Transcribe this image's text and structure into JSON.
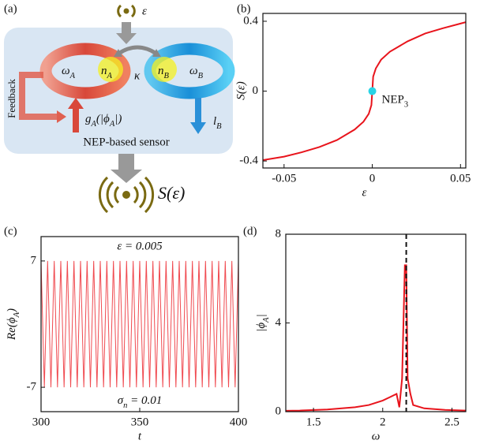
{
  "diagram": {
    "label": "(a)",
    "input": "ε",
    "omega_a": [
      "ω",
      "A"
    ],
    "n_a": [
      "n",
      "A"
    ],
    "kappa": "κ",
    "n_b": [
      "n",
      "B"
    ],
    "omega_b": [
      "ω",
      "B"
    ],
    "feedback": "Feedback",
    "gain": [
      "g",
      "A",
      "(|ϕ",
      "A",
      "|)"
    ],
    "loss": [
      "l",
      "B"
    ],
    "caption": "NEP-based sensor",
    "output": "S(ε)"
  },
  "chart_data": [
    {
      "type": "line",
      "label": "(b)",
      "color": "#e8141c",
      "x": [
        -0.062,
        -0.05,
        -0.04,
        -0.03,
        -0.02,
        -0.01,
        -0.005,
        -0.002,
        -0.0005,
        0,
        0.0005,
        0.002,
        0.005,
        0.01,
        0.02,
        0.03,
        0.04,
        0.05,
        0.053
      ],
      "values": [
        -0.395,
        -0.375,
        -0.35,
        -0.32,
        -0.28,
        -0.22,
        -0.175,
        -0.13,
        -0.08,
        0,
        0.083,
        0.13,
        0.18,
        0.226,
        0.285,
        0.33,
        0.36,
        0.387,
        0.395
      ],
      "xlim": [
        -0.062,
        0.053
      ],
      "xticks": [
        -0.05,
        0,
        0.05
      ],
      "ylim": [
        -0.44,
        0.445
      ],
      "yticks": [
        -0.4,
        0,
        0.4
      ],
      "xlabel": "ε",
      "ylabel": "S(ε)",
      "marker": {
        "x": 0,
        "y": 0,
        "color": "#2ad4e6",
        "label": [
          "NEP",
          "3"
        ]
      }
    },
    {
      "type": "line",
      "label": "(c)",
      "color": "#f04a50",
      "x": [
        300,
        301.67,
        303.33,
        305,
        306.67,
        308.33,
        310,
        311.67,
        313.33,
        315,
        316.67,
        318.33,
        320,
        321.67,
        323.33,
        325,
        326.67,
        328.33,
        330,
        331.67,
        333.33,
        335,
        336.67,
        338.33,
        340,
        341.67,
        343.33,
        345,
        346.67,
        348.33,
        350,
        351.67,
        353.33,
        355,
        356.67,
        358.33,
        360,
        361.67,
        363.33,
        365,
        366.67,
        368.33,
        370,
        371.67,
        373.33,
        375,
        376.67,
        378.33,
        380,
        381.67,
        383.33,
        385,
        386.67,
        388.33,
        390,
        391.67,
        393.33,
        395,
        396.67,
        398.33,
        400
      ],
      "values": [
        7,
        -7,
        7,
        -7,
        7,
        -7,
        7,
        -7,
        7,
        -7,
        7,
        -7,
        7,
        -7,
        7,
        -7,
        7,
        -7,
        7,
        -7,
        7,
        -7,
        7,
        -7,
        7,
        -7,
        7,
        -7,
        7,
        -7,
        7,
        -7,
        7,
        -7,
        7,
        -7,
        7,
        -7,
        7,
        -7,
        7,
        -7,
        7,
        -7,
        7,
        -7,
        7,
        -7,
        7,
        -7,
        7,
        -7,
        7,
        -7,
        7,
        -7,
        7,
        -7,
        7,
        -7,
        7
      ],
      "xlim": [
        300,
        400
      ],
      "xticks": [
        300,
        350,
        400
      ],
      "ylim": [
        -9.7,
        9.7
      ],
      "yticks": [
        -7,
        7
      ],
      "xlabel": "t",
      "ylabel": [
        "Re(ϕ",
        "A",
        ")"
      ],
      "annotations": [
        "ε = 0.005",
        [
          "σ",
          "n",
          " = 0.01"
        ]
      ]
    },
    {
      "type": "line",
      "label": "(d)",
      "color": "#e8141c",
      "x": [
        1.3,
        1.4,
        1.6,
        1.8,
        1.9,
        2.0,
        2.05,
        2.1,
        2.12,
        2.14,
        2.16,
        2.17,
        2.18,
        2.2,
        2.22,
        2.3,
        2.45,
        2.6
      ],
      "values": [
        0.04,
        0.05,
        0.1,
        0.2,
        0.3,
        0.5,
        0.65,
        0.8,
        0.2,
        1.5,
        6.6,
        6.6,
        1.5,
        0.8,
        0.3,
        0.15,
        0.08,
        0.05
      ],
      "xlim": [
        1.3,
        2.6
      ],
      "xticks": [
        1.5,
        2,
        2.5
      ],
      "ylim": [
        0,
        8
      ],
      "yticks": [
        0,
        4,
        8
      ],
      "xlabel": "ω",
      "ylabel": [
        "|ϕ",
        "A",
        "|"
      ],
      "vline": 2.17
    }
  ]
}
